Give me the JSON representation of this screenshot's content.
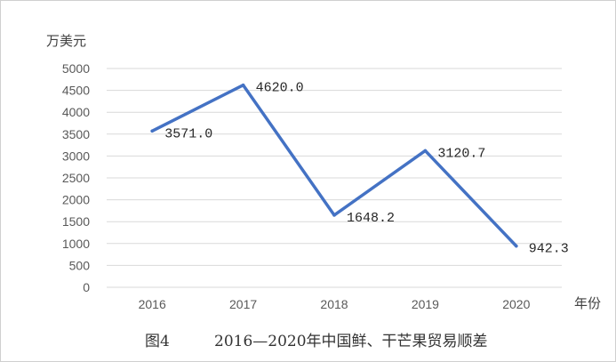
{
  "chart_data": {
    "type": "line",
    "title": "",
    "caption_label": "图4",
    "caption_title": "2016—2020年中国鲜、干芒果贸易顺差",
    "ylabel": "万美元",
    "xlabel": "年份",
    "categories": [
      "2016",
      "2017",
      "2018",
      "2019",
      "2020"
    ],
    "series": [
      {
        "values": [
          3571.0,
          4620.0,
          1648.2,
          3120.7,
          942.3
        ],
        "labels": [
          "3571.0",
          "4620.0",
          "1648.2",
          "3120.7",
          "942.3"
        ]
      }
    ],
    "yticks": [
      "0",
      "500",
      "1000",
      "1500",
      "2000",
      "2500",
      "3000",
      "3500",
      "4000",
      "4500",
      "5000"
    ],
    "ylim": [
      0,
      5000
    ],
    "grid": true,
    "legend": "none",
    "line_color": "#4472C4",
    "grid_color": "#d9d9d9"
  }
}
